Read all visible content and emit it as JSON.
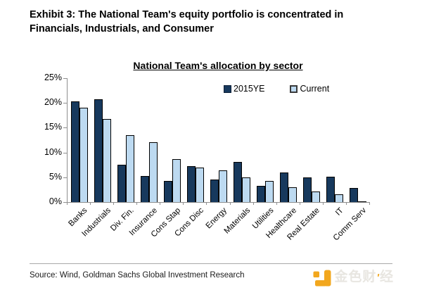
{
  "exhibit": {
    "title_line1": "Exhibit 3: The National Team's equity portfolio is concentrated in",
    "title_line2": "Financials, Industrials, and Consumer"
  },
  "chart_data": {
    "type": "bar",
    "title": "National Team's allocation by sector",
    "categories": [
      "Banks",
      "Industrials",
      "Div. Fin.",
      "Insurance",
      "Cons Stap",
      "Cons Disc",
      "Energy",
      "Materials",
      "Utilities",
      "Healthcare",
      "Real Estate",
      "IT",
      "Comm Serv"
    ],
    "series": [
      {
        "name": "2015YE",
        "color": "#17395D",
        "values": [
          20.3,
          20.8,
          7.5,
          5.3,
          4.2,
          7.2,
          4.6,
          8.1,
          3.3,
          5.9,
          5.0,
          5.1,
          2.9
        ]
      },
      {
        "name": "Current",
        "color": "#BDDAF1",
        "values": [
          19.1,
          16.7,
          13.5,
          12.1,
          8.7,
          7.0,
          6.4,
          5.0,
          4.3,
          3.0,
          2.2,
          1.5,
          0.2
        ]
      }
    ],
    "ylim": [
      0,
      25
    ],
    "y_ticks": [
      "0%",
      "5%",
      "10%",
      "15%",
      "20%",
      "25%"
    ],
    "grid": false,
    "legend_position": "top"
  },
  "footer": {
    "source": "Source: Wind, Goldman Sachs Global Investment Research",
    "logo": {
      "icon": "jinse-finance-logo",
      "text_1": "金色财",
      "accent": "'",
      "text_2": "经",
      "orange": "#F2A71E",
      "text_color": "#e8e6e1"
    }
  }
}
